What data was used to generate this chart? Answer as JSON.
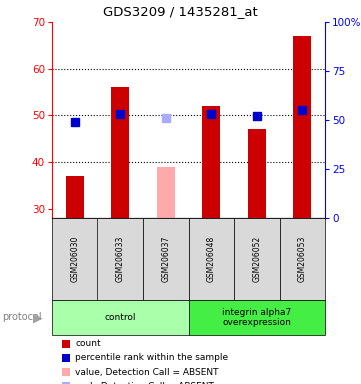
{
  "title": "GDS3209 / 1435281_at",
  "samples": [
    "GSM206030",
    "GSM206033",
    "GSM206037",
    "GSM206048",
    "GSM206052",
    "GSM206053"
  ],
  "bar_values": [
    37.0,
    56.0,
    39.0,
    52.0,
    47.0,
    67.0
  ],
  "bar_colors": [
    "#cc0000",
    "#cc0000",
    "#ffaaaa",
    "#cc0000",
    "#cc0000",
    "#cc0000"
  ],
  "rank_values": [
    49.0,
    53.0,
    51.0,
    53.0,
    52.0,
    55.0
  ],
  "rank_colors": [
    "#0000cc",
    "#0000cc",
    "#aaaaff",
    "#0000cc",
    "#0000cc",
    "#0000cc"
  ],
  "ylim_left": [
    28,
    70
  ],
  "ylim_right": [
    0,
    100
  ],
  "right_ticks": [
    0,
    25,
    50,
    75,
    100
  ],
  "right_tick_labels": [
    "0",
    "25",
    "50",
    "75",
    "100%"
  ],
  "left_ticks": [
    30,
    40,
    50,
    60,
    70
  ],
  "groups": [
    {
      "label": "control",
      "start": 0,
      "end": 3,
      "color": "#aaffaa"
    },
    {
      "label": "integrin alpha7\noverexpression",
      "start": 3,
      "end": 6,
      "color": "#44ee44"
    }
  ],
  "protocol_label": "protocol",
  "legend_items": [
    {
      "color": "#cc0000",
      "label": "count"
    },
    {
      "color": "#0000cc",
      "label": "percentile rank within the sample"
    },
    {
      "color": "#ffaaaa",
      "label": "value, Detection Call = ABSENT"
    },
    {
      "color": "#aaaaff",
      "label": "rank, Detection Call = ABSENT"
    }
  ],
  "background_color": "#ffffff",
  "bar_width": 0.4,
  "marker_size": 6,
  "grid_yticks": [
    40,
    50,
    60
  ]
}
